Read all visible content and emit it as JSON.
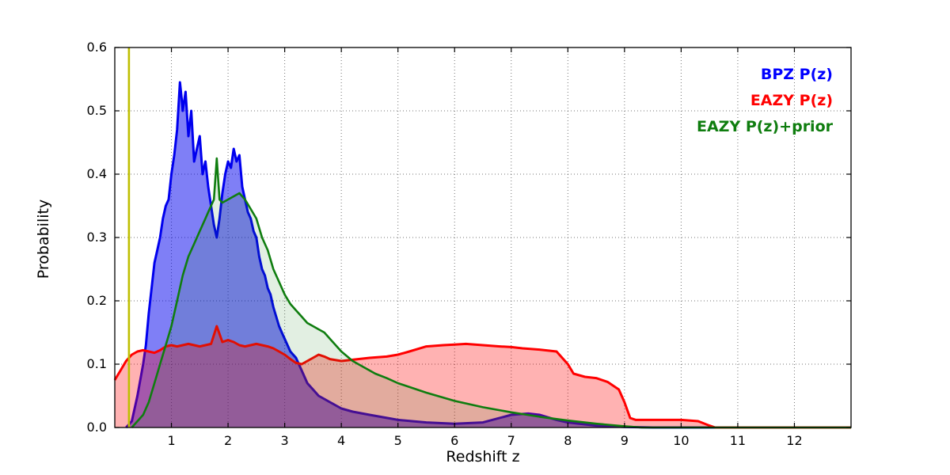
{
  "chart_data": {
    "type": "area",
    "title": "",
    "xlabel": "Redshift z",
    "ylabel": "Probability",
    "xlim": [
      0,
      13
    ],
    "ylim": [
      0,
      0.6
    ],
    "xticks": [
      1,
      2,
      3,
      4,
      5,
      6,
      7,
      8,
      9,
      10,
      11,
      12
    ],
    "yticks": [
      0.0,
      0.1,
      0.2,
      0.3,
      0.4,
      0.5,
      0.6
    ],
    "grid": "dotted",
    "legend_position": "upper right",
    "legend": [
      {
        "label": "BPZ P(z)",
        "color": "#0000ff"
      },
      {
        "label": "EAZY P(z)",
        "color": "#ff0000"
      },
      {
        "label": "EAZY P(z)+prior",
        "color": "#0f7d0f"
      }
    ],
    "vline": {
      "x": 0.25,
      "color": "#bfbf00",
      "ymin": 0.0,
      "ymax": 0.6
    },
    "series": [
      {
        "name": "BPZ P(z)",
        "color": "#0000ee",
        "fill_opacity": 0.5,
        "line_width": 3,
        "points": [
          [
            0.2,
            0.0
          ],
          [
            0.3,
            0.01
          ],
          [
            0.4,
            0.05
          ],
          [
            0.5,
            0.1
          ],
          [
            0.55,
            0.13
          ],
          [
            0.6,
            0.18
          ],
          [
            0.65,
            0.22
          ],
          [
            0.7,
            0.26
          ],
          [
            0.75,
            0.28
          ],
          [
            0.8,
            0.3
          ],
          [
            0.85,
            0.33
          ],
          [
            0.9,
            0.35
          ],
          [
            0.95,
            0.36
          ],
          [
            1.0,
            0.4
          ],
          [
            1.05,
            0.43
          ],
          [
            1.1,
            0.47
          ],
          [
            1.15,
            0.545
          ],
          [
            1.18,
            0.52
          ],
          [
            1.2,
            0.5
          ],
          [
            1.25,
            0.53
          ],
          [
            1.3,
            0.46
          ],
          [
            1.35,
            0.5
          ],
          [
            1.4,
            0.42
          ],
          [
            1.45,
            0.44
          ],
          [
            1.5,
            0.46
          ],
          [
            1.55,
            0.4
          ],
          [
            1.6,
            0.42
          ],
          [
            1.65,
            0.38
          ],
          [
            1.7,
            0.35
          ],
          [
            1.75,
            0.32
          ],
          [
            1.8,
            0.3
          ],
          [
            1.85,
            0.33
          ],
          [
            1.9,
            0.37
          ],
          [
            1.95,
            0.4
          ],
          [
            2.0,
            0.42
          ],
          [
            2.05,
            0.41
          ],
          [
            2.1,
            0.44
          ],
          [
            2.15,
            0.42
          ],
          [
            2.2,
            0.43
          ],
          [
            2.25,
            0.38
          ],
          [
            2.3,
            0.36
          ],
          [
            2.35,
            0.34
          ],
          [
            2.4,
            0.33
          ],
          [
            2.45,
            0.31
          ],
          [
            2.5,
            0.3
          ],
          [
            2.55,
            0.27
          ],
          [
            2.6,
            0.25
          ],
          [
            2.65,
            0.24
          ],
          [
            2.7,
            0.22
          ],
          [
            2.75,
            0.21
          ],
          [
            2.8,
            0.19
          ],
          [
            2.85,
            0.175
          ],
          [
            2.9,
            0.16
          ],
          [
            2.95,
            0.15
          ],
          [
            3.0,
            0.14
          ],
          [
            3.05,
            0.13
          ],
          [
            3.1,
            0.12
          ],
          [
            3.15,
            0.115
          ],
          [
            3.2,
            0.11
          ],
          [
            3.3,
            0.09
          ],
          [
            3.4,
            0.07
          ],
          [
            3.5,
            0.06
          ],
          [
            3.6,
            0.05
          ],
          [
            3.7,
            0.045
          ],
          [
            3.8,
            0.04
          ],
          [
            4.0,
            0.03
          ],
          [
            4.2,
            0.025
          ],
          [
            4.5,
            0.02
          ],
          [
            5.0,
            0.012
          ],
          [
            5.5,
            0.008
          ],
          [
            6.0,
            0.006
          ],
          [
            6.5,
            0.008
          ],
          [
            7.0,
            0.02
          ],
          [
            7.3,
            0.022
          ],
          [
            7.5,
            0.02
          ],
          [
            7.8,
            0.012
          ],
          [
            8.0,
            0.008
          ],
          [
            8.5,
            0.003
          ],
          [
            9.0,
            0.001
          ],
          [
            9.5,
            0.0
          ],
          [
            13.0,
            0.0
          ]
        ]
      },
      {
        "name": "EAZY P(z)",
        "color": "#ff0000",
        "fill_opacity": 0.3,
        "line_width": 3,
        "points": [
          [
            0.0,
            0.075
          ],
          [
            0.1,
            0.09
          ],
          [
            0.2,
            0.105
          ],
          [
            0.3,
            0.115
          ],
          [
            0.4,
            0.12
          ],
          [
            0.5,
            0.122
          ],
          [
            0.6,
            0.12
          ],
          [
            0.7,
            0.118
          ],
          [
            0.8,
            0.122
          ],
          [
            0.9,
            0.128
          ],
          [
            1.0,
            0.13
          ],
          [
            1.1,
            0.128
          ],
          [
            1.2,
            0.13
          ],
          [
            1.3,
            0.132
          ],
          [
            1.4,
            0.13
          ],
          [
            1.5,
            0.128
          ],
          [
            1.6,
            0.13
          ],
          [
            1.7,
            0.132
          ],
          [
            1.8,
            0.16
          ],
          [
            1.9,
            0.135
          ],
          [
            2.0,
            0.138
          ],
          [
            2.1,
            0.135
          ],
          [
            2.2,
            0.13
          ],
          [
            2.3,
            0.128
          ],
          [
            2.4,
            0.13
          ],
          [
            2.5,
            0.132
          ],
          [
            2.6,
            0.13
          ],
          [
            2.7,
            0.128
          ],
          [
            2.8,
            0.125
          ],
          [
            2.9,
            0.12
          ],
          [
            3.0,
            0.115
          ],
          [
            3.1,
            0.108
          ],
          [
            3.2,
            0.102
          ],
          [
            3.3,
            0.1
          ],
          [
            3.4,
            0.105
          ],
          [
            3.5,
            0.11
          ],
          [
            3.6,
            0.115
          ],
          [
            3.7,
            0.112
          ],
          [
            3.8,
            0.108
          ],
          [
            4.0,
            0.105
          ],
          [
            4.2,
            0.107
          ],
          [
            4.5,
            0.11
          ],
          [
            4.8,
            0.112
          ],
          [
            5.0,
            0.115
          ],
          [
            5.2,
            0.12
          ],
          [
            5.5,
            0.128
          ],
          [
            5.8,
            0.13
          ],
          [
            6.0,
            0.131
          ],
          [
            6.2,
            0.132
          ],
          [
            6.5,
            0.13
          ],
          [
            6.8,
            0.128
          ],
          [
            7.0,
            0.127
          ],
          [
            7.2,
            0.125
          ],
          [
            7.5,
            0.123
          ],
          [
            7.8,
            0.12
          ],
          [
            8.0,
            0.1
          ],
          [
            8.1,
            0.085
          ],
          [
            8.3,
            0.08
          ],
          [
            8.5,
            0.078
          ],
          [
            8.7,
            0.072
          ],
          [
            8.9,
            0.06
          ],
          [
            9.0,
            0.04
          ],
          [
            9.1,
            0.015
          ],
          [
            9.2,
            0.012
          ],
          [
            9.5,
            0.012
          ],
          [
            10.0,
            0.012
          ],
          [
            10.3,
            0.01
          ],
          [
            10.5,
            0.003
          ],
          [
            10.6,
            0.0
          ],
          [
            13.0,
            0.0
          ]
        ]
      },
      {
        "name": "EAZY P(z)+prior",
        "color": "#0f7d0f",
        "fill_opacity": 0.12,
        "line_width": 2.6,
        "points": [
          [
            0.3,
            0.0
          ],
          [
            0.5,
            0.02
          ],
          [
            0.6,
            0.04
          ],
          [
            0.7,
            0.07
          ],
          [
            0.8,
            0.1
          ],
          [
            0.9,
            0.13
          ],
          [
            1.0,
            0.16
          ],
          [
            1.1,
            0.2
          ],
          [
            1.2,
            0.24
          ],
          [
            1.3,
            0.27
          ],
          [
            1.4,
            0.29
          ],
          [
            1.5,
            0.31
          ],
          [
            1.6,
            0.33
          ],
          [
            1.65,
            0.34
          ],
          [
            1.7,
            0.35
          ],
          [
            1.75,
            0.36
          ],
          [
            1.8,
            0.425
          ],
          [
            1.85,
            0.36
          ],
          [
            1.9,
            0.355
          ],
          [
            2.0,
            0.36
          ],
          [
            2.1,
            0.365
          ],
          [
            2.2,
            0.37
          ],
          [
            2.3,
            0.36
          ],
          [
            2.4,
            0.345
          ],
          [
            2.5,
            0.33
          ],
          [
            2.6,
            0.3
          ],
          [
            2.7,
            0.28
          ],
          [
            2.8,
            0.25
          ],
          [
            2.9,
            0.23
          ],
          [
            3.0,
            0.21
          ],
          [
            3.1,
            0.195
          ],
          [
            3.2,
            0.185
          ],
          [
            3.3,
            0.175
          ],
          [
            3.4,
            0.165
          ],
          [
            3.5,
            0.16
          ],
          [
            3.6,
            0.155
          ],
          [
            3.7,
            0.15
          ],
          [
            3.8,
            0.14
          ],
          [
            3.9,
            0.13
          ],
          [
            4.0,
            0.12
          ],
          [
            4.2,
            0.105
          ],
          [
            4.4,
            0.095
          ],
          [
            4.6,
            0.085
          ],
          [
            4.8,
            0.078
          ],
          [
            5.0,
            0.07
          ],
          [
            5.5,
            0.055
          ],
          [
            6.0,
            0.042
          ],
          [
            6.5,
            0.032
          ],
          [
            7.0,
            0.024
          ],
          [
            7.5,
            0.017
          ],
          [
            8.0,
            0.011
          ],
          [
            8.5,
            0.006
          ],
          [
            9.0,
            0.002
          ],
          [
            9.3,
            0.0
          ],
          [
            13.0,
            0.0
          ]
        ]
      }
    ]
  }
}
